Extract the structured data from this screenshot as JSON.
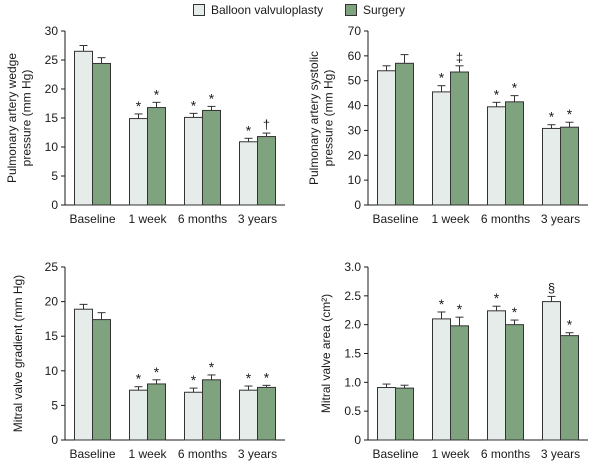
{
  "legend": {
    "items": [
      {
        "label": "Balloon valvuloplasty",
        "color": "#e6ecea"
      },
      {
        "label": "Surgery",
        "color": "#7fa27f"
      }
    ]
  },
  "chart_data": [
    {
      "type": "bar",
      "ylabel": "Pulmonary artery wedge pressure (mm Hg)",
      "ylim": [
        0,
        30
      ],
      "yticks": [
        0,
        5,
        10,
        15,
        20,
        25,
        30
      ],
      "categories": [
        "Baseline",
        "1 week",
        "6 months",
        "3 years"
      ],
      "series": [
        {
          "name": "Balloon valvuloplasty",
          "values": [
            26.5,
            14.9,
            15.1,
            10.9
          ],
          "errors": [
            1.0,
            0.8,
            0.7,
            0.6
          ],
          "marks": [
            "",
            "*",
            "*",
            "*"
          ]
        },
        {
          "name": "Surgery",
          "values": [
            24.4,
            16.8,
            16.3,
            11.8
          ],
          "errors": [
            1.0,
            0.9,
            0.7,
            0.6
          ],
          "marks": [
            "",
            "*",
            "*",
            "†"
          ]
        }
      ]
    },
    {
      "type": "bar",
      "ylabel": "Pulmonary artery systolic pressure (mm Hg)",
      "ylim": [
        0,
        70
      ],
      "yticks": [
        0,
        10,
        20,
        30,
        40,
        50,
        60,
        70
      ],
      "categories": [
        "Baseline",
        "1 week",
        "6 months",
        "3 years"
      ],
      "series": [
        {
          "name": "Balloon valvuloplasty",
          "values": [
            54,
            45.5,
            39.5,
            30.8
          ],
          "errors": [
            2,
            2.5,
            1.8,
            1.5
          ],
          "marks": [
            "",
            "*",
            "*",
            "*"
          ]
        },
        {
          "name": "Surgery",
          "values": [
            57,
            53.5,
            41.5,
            31.3
          ],
          "errors": [
            3.5,
            2.5,
            2.5,
            2.0
          ],
          "marks": [
            "",
            "‡",
            "*",
            "*"
          ]
        }
      ]
    },
    {
      "type": "bar",
      "ylabel": "Mitral valve gradient (mm Hg)",
      "ylim": [
        0,
        25
      ],
      "yticks": [
        0,
        5,
        10,
        15,
        20,
        25
      ],
      "categories": [
        "Baseline",
        "1 week",
        "6 months",
        "3 years"
      ],
      "series": [
        {
          "name": "Balloon valvuloplasty",
          "values": [
            18.9,
            7.2,
            6.9,
            7.2
          ],
          "errors": [
            0.7,
            0.5,
            0.6,
            0.6
          ],
          "marks": [
            "",
            "*",
            "*",
            "*"
          ]
        },
        {
          "name": "Surgery",
          "values": [
            17.4,
            8.1,
            8.7,
            7.6
          ],
          "errors": [
            1.0,
            0.6,
            0.7,
            0.3
          ],
          "marks": [
            "",
            "*",
            "*",
            "*"
          ]
        }
      ]
    },
    {
      "type": "bar",
      "ylabel": "Mitral valve area (cm²)",
      "ylim": [
        0,
        3.0
      ],
      "yticks": [
        0,
        0.5,
        1.0,
        1.5,
        2.0,
        2.5,
        3.0
      ],
      "ytick_labels": [
        "0",
        "0.5",
        "1.0",
        "1.5",
        "2.0",
        "2.5",
        "3.0"
      ],
      "categories": [
        "Baseline",
        "1 week",
        "6 months",
        "3 years"
      ],
      "series": [
        {
          "name": "Balloon valvuloplasty",
          "values": [
            0.91,
            2.1,
            2.24,
            2.4
          ],
          "errors": [
            0.06,
            0.12,
            0.08,
            0.09
          ],
          "marks": [
            "",
            "*",
            "*",
            "§"
          ]
        },
        {
          "name": "Surgery",
          "values": [
            0.9,
            1.98,
            2.0,
            1.81
          ],
          "errors": [
            0.05,
            0.15,
            0.08,
            0.05
          ],
          "marks": [
            "",
            "*",
            "*",
            "*"
          ]
        }
      ]
    }
  ]
}
